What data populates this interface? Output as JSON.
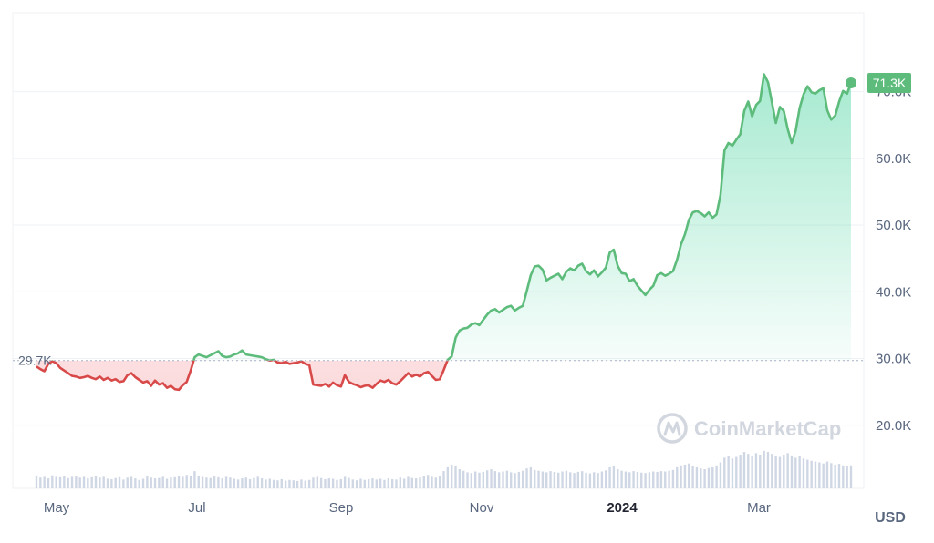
{
  "chart_data": {
    "type": "area",
    "x_ticks": [
      "May",
      "Jul",
      "Sep",
      "Nov",
      "2024",
      "Mar"
    ],
    "bold_tick": "2024",
    "y_ticks": [
      "20.0K",
      "30.0K",
      "40.0K",
      "50.0K",
      "60.0K",
      "70.0K"
    ],
    "y_tick_values": [
      20000,
      30000,
      40000,
      50000,
      60000,
      70000
    ],
    "ylim": [
      10000,
      81000
    ],
    "unit_label": "USD",
    "baseline": {
      "value": 29700,
      "label": "29.7K"
    },
    "last_value": {
      "value": 71300,
      "label": "71.3K"
    },
    "colors": {
      "up": "#16c784",
      "up_line": "#5dbc7b",
      "down": "#d84a49",
      "grid": "#eff2f5",
      "volume": "#cfd6e4"
    },
    "series": [
      {
        "values": [
          28800,
          28400,
          28100,
          29200,
          29600,
          29300,
          28600,
          28200,
          27800,
          27400,
          27300,
          27100,
          27200,
          27400,
          27100,
          26900,
          27300,
          26800,
          27100,
          26700,
          26900,
          26500,
          26600,
          27500,
          27800,
          27200,
          26800,
          26400,
          26600,
          25900,
          26700,
          26100,
          26300,
          25600,
          25900,
          25400,
          25300,
          26000,
          26500,
          28200,
          30200,
          30600,
          30400,
          30200,
          30500,
          30800,
          31100,
          30400,
          30200,
          30300,
          30600,
          30800,
          31200,
          30600,
          30500,
          30400,
          30300,
          30200,
          29900,
          29700,
          29800,
          29400,
          29300,
          29500,
          29200,
          29300,
          29400,
          29600,
          29200,
          29000,
          26100,
          26000,
          25900,
          26200,
          25800,
          26400,
          26000,
          25800,
          27500,
          26500,
          26200,
          26000,
          25700,
          25900,
          26000,
          25600,
          26200,
          26700,
          26500,
          26800,
          26300,
          26100,
          26600,
          27200,
          27800,
          27300,
          27600,
          27300,
          27800,
          28000,
          27400,
          26800,
          26900,
          28300,
          29800,
          30300,
          33100,
          34200,
          34500,
          34600,
          35100,
          35300,
          35000,
          35800,
          36600,
          37200,
          37400,
          36900,
          37300,
          37700,
          37900,
          37200,
          37600,
          37900,
          40100,
          42500,
          43800,
          43900,
          43300,
          41700,
          42100,
          42400,
          42700,
          41900,
          43000,
          43500,
          43200,
          43900,
          44200,
          43100,
          42600,
          43200,
          42300,
          42900,
          43600,
          45900,
          46300,
          43900,
          42800,
          42700,
          41600,
          41900,
          40900,
          40200,
          39500,
          40300,
          40900,
          42500,
          42800,
          42400,
          42700,
          43100,
          44800,
          47100,
          48600,
          50800,
          51900,
          52100,
          51800,
          51300,
          51900,
          51100,
          51600,
          54500,
          61200,
          62300,
          61900,
          62800,
          63600,
          67100,
          68500,
          66300,
          68000,
          68600,
          72600,
          71400,
          68400,
          65300,
          67700,
          67100,
          64400,
          62300,
          64100,
          67500,
          69600,
          70800,
          69900,
          69700,
          70200,
          70500,
          67200,
          65800,
          66400,
          68500,
          70100,
          69700,
          71300
        ]
      }
    ],
    "volume": [
      0.33,
      0.28,
      0.3,
      0.26,
      0.34,
      0.3,
      0.29,
      0.31,
      0.27,
      0.3,
      0.33,
      0.28,
      0.3,
      0.26,
      0.29,
      0.31,
      0.28,
      0.3,
      0.25,
      0.24,
      0.27,
      0.29,
      0.23,
      0.28,
      0.3,
      0.26,
      0.22,
      0.25,
      0.31,
      0.28,
      0.26,
      0.27,
      0.3,
      0.25,
      0.28,
      0.29,
      0.33,
      0.3,
      0.35,
      0.33,
      0.45,
      0.32,
      0.3,
      0.28,
      0.27,
      0.31,
      0.29,
      0.26,
      0.3,
      0.28,
      0.25,
      0.23,
      0.26,
      0.28,
      0.24,
      0.27,
      0.3,
      0.26,
      0.23,
      0.25,
      0.22,
      0.21,
      0.24,
      0.2,
      0.22,
      0.21,
      0.19,
      0.23,
      0.2,
      0.22,
      0.28,
      0.3,
      0.27,
      0.24,
      0.26,
      0.25,
      0.22,
      0.24,
      0.3,
      0.27,
      0.23,
      0.21,
      0.25,
      0.22,
      0.24,
      0.26,
      0.23,
      0.25,
      0.22,
      0.26,
      0.24,
      0.23,
      0.28,
      0.25,
      0.3,
      0.27,
      0.26,
      0.28,
      0.32,
      0.35,
      0.3,
      0.28,
      0.32,
      0.45,
      0.55,
      0.62,
      0.58,
      0.5,
      0.46,
      0.42,
      0.4,
      0.44,
      0.41,
      0.43,
      0.47,
      0.5,
      0.45,
      0.42,
      0.44,
      0.46,
      0.42,
      0.4,
      0.43,
      0.46,
      0.52,
      0.55,
      0.48,
      0.46,
      0.44,
      0.42,
      0.45,
      0.43,
      0.41,
      0.44,
      0.46,
      0.42,
      0.4,
      0.43,
      0.45,
      0.41,
      0.39,
      0.42,
      0.4,
      0.44,
      0.47,
      0.55,
      0.58,
      0.5,
      0.46,
      0.44,
      0.42,
      0.45,
      0.43,
      0.41,
      0.4,
      0.42,
      0.44,
      0.43,
      0.45,
      0.44,
      0.46,
      0.48,
      0.55,
      0.6,
      0.62,
      0.65,
      0.58,
      0.55,
      0.52,
      0.5,
      0.53,
      0.55,
      0.6,
      0.68,
      0.8,
      0.85,
      0.78,
      0.82,
      0.88,
      0.95,
      0.9,
      0.85,
      0.92,
      0.88,
      0.98,
      0.95,
      0.9,
      0.85,
      0.82,
      0.88,
      0.92,
      0.86,
      0.8,
      0.84,
      0.78,
      0.75,
      0.72,
      0.7,
      0.68,
      0.65,
      0.7,
      0.66,
      0.62,
      0.64,
      0.6,
      0.58,
      0.6
    ]
  },
  "watermark": {
    "text": "CoinMarketCap"
  }
}
